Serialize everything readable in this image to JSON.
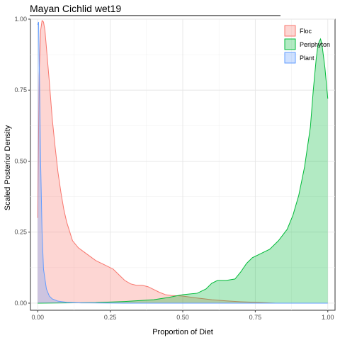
{
  "chart_data": {
    "type": "area",
    "title": "Mayan Cichlid wet19",
    "xlabel": "Proportion of Diet",
    "ylabel": "Scaled Posterior Density",
    "xlim": [
      -0.025,
      1.025
    ],
    "ylim": [
      -0.025,
      1.0
    ],
    "x_ticks": [
      0.0,
      0.25,
      0.5,
      0.75,
      1.0
    ],
    "x_tick_labels": [
      "0.00",
      "0.25",
      "0.50",
      "0.75",
      "1.00"
    ],
    "y_ticks": [
      0.0,
      0.25,
      0.5,
      0.75,
      1.0
    ],
    "y_tick_labels": [
      "0.00",
      "0.25",
      "0.50",
      "0.75",
      "1.00"
    ],
    "grid": true,
    "legend_position": "top-right",
    "series": [
      {
        "name": "Floc",
        "fill": "#f8766d",
        "stroke": "#f8766d",
        "points": [
          [
            0.0,
            0.3
          ],
          [
            0.005,
            0.8
          ],
          [
            0.01,
            0.96
          ],
          [
            0.015,
            0.995
          ],
          [
            0.02,
            0.99
          ],
          [
            0.025,
            0.96
          ],
          [
            0.03,
            0.9
          ],
          [
            0.04,
            0.78
          ],
          [
            0.05,
            0.65
          ],
          [
            0.06,
            0.55
          ],
          [
            0.07,
            0.46
          ],
          [
            0.08,
            0.39
          ],
          [
            0.09,
            0.33
          ],
          [
            0.1,
            0.285
          ],
          [
            0.12,
            0.22
          ],
          [
            0.14,
            0.195
          ],
          [
            0.16,
            0.18
          ],
          [
            0.18,
            0.165
          ],
          [
            0.2,
            0.15
          ],
          [
            0.22,
            0.14
          ],
          [
            0.24,
            0.13
          ],
          [
            0.26,
            0.12
          ],
          [
            0.28,
            0.1
          ],
          [
            0.3,
            0.08
          ],
          [
            0.32,
            0.068
          ],
          [
            0.34,
            0.063
          ],
          [
            0.36,
            0.063
          ],
          [
            0.38,
            0.058
          ],
          [
            0.4,
            0.048
          ],
          [
            0.42,
            0.038
          ],
          [
            0.44,
            0.03
          ],
          [
            0.46,
            0.027
          ],
          [
            0.48,
            0.026
          ],
          [
            0.5,
            0.025
          ],
          [
            0.55,
            0.018
          ],
          [
            0.6,
            0.012
          ],
          [
            0.65,
            0.008
          ],
          [
            0.7,
            0.005
          ],
          [
            0.75,
            0.003
          ],
          [
            0.8,
            0.001
          ],
          [
            0.82,
            0.0
          ]
        ]
      },
      {
        "name": "Periphyton",
        "fill": "#00ba38",
        "stroke": "#00ba38",
        "points": [
          [
            0.0,
            0.0
          ],
          [
            0.2,
            0.002
          ],
          [
            0.3,
            0.006
          ],
          [
            0.4,
            0.012
          ],
          [
            0.45,
            0.02
          ],
          [
            0.5,
            0.03
          ],
          [
            0.55,
            0.035
          ],
          [
            0.58,
            0.05
          ],
          [
            0.6,
            0.07
          ],
          [
            0.62,
            0.08
          ],
          [
            0.65,
            0.08
          ],
          [
            0.68,
            0.085
          ],
          [
            0.7,
            0.11
          ],
          [
            0.72,
            0.14
          ],
          [
            0.74,
            0.16
          ],
          [
            0.76,
            0.17
          ],
          [
            0.8,
            0.19
          ],
          [
            0.83,
            0.22
          ],
          [
            0.86,
            0.26
          ],
          [
            0.88,
            0.31
          ],
          [
            0.9,
            0.38
          ],
          [
            0.92,
            0.48
          ],
          [
            0.94,
            0.62
          ],
          [
            0.95,
            0.75
          ],
          [
            0.96,
            0.86
          ],
          [
            0.965,
            0.9
          ],
          [
            0.97,
            0.92
          ],
          [
            0.975,
            0.93
          ],
          [
            0.98,
            0.91
          ],
          [
            0.99,
            0.83
          ],
          [
            1.0,
            0.72
          ]
        ]
      },
      {
        "name": "Plant",
        "fill": "#619cff",
        "stroke": "#619cff",
        "points": [
          [
            0.0,
            0.98
          ],
          [
            0.003,
            0.99
          ],
          [
            0.006,
            0.8
          ],
          [
            0.01,
            0.5
          ],
          [
            0.015,
            0.25
          ],
          [
            0.02,
            0.12
          ],
          [
            0.03,
            0.05
          ],
          [
            0.04,
            0.025
          ],
          [
            0.05,
            0.015
          ],
          [
            0.07,
            0.007
          ],
          [
            0.1,
            0.003
          ],
          [
            0.15,
            0.001
          ],
          [
            0.3,
            0.0
          ],
          [
            0.5,
            0.0
          ],
          [
            0.8,
            0.0
          ],
          [
            1.0,
            0.0
          ]
        ]
      }
    ]
  }
}
